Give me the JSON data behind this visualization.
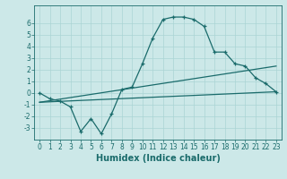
{
  "xlabel": "Humidex (Indice chaleur)",
  "bg_color": "#cce8e8",
  "line_color": "#1a6b6b",
  "grid_color": "#aad4d4",
  "x_ticks": [
    0,
    1,
    2,
    3,
    4,
    5,
    6,
    7,
    8,
    9,
    10,
    11,
    12,
    13,
    14,
    15,
    16,
    17,
    18,
    19,
    20,
    21,
    22,
    23
  ],
  "ylim": [
    -4,
    7.5
  ],
  "xlim": [
    -0.5,
    23.5
  ],
  "series1_x": [
    0,
    1,
    2,
    3,
    4,
    5,
    6,
    7,
    8,
    9,
    10,
    11,
    12,
    13,
    14,
    15,
    16,
    17,
    18,
    19,
    20,
    21,
    22,
    23
  ],
  "series1_y": [
    0.0,
    -0.5,
    -0.7,
    -1.2,
    -3.3,
    -2.2,
    -3.5,
    -1.8,
    0.3,
    0.5,
    2.5,
    4.7,
    6.3,
    6.5,
    6.5,
    6.3,
    5.7,
    3.5,
    3.5,
    2.5,
    2.3,
    1.3,
    0.8,
    0.1
  ],
  "series2_x": [
    0,
    23
  ],
  "series2_y": [
    -0.8,
    0.1
  ],
  "series3_x": [
    0,
    23
  ],
  "series3_y": [
    -0.8,
    2.3
  ],
  "yticks": [
    -3,
    -2,
    -1,
    0,
    1,
    2,
    3,
    4,
    5,
    6
  ],
  "tick_fontsize": 5.5,
  "xlabel_fontsize": 7,
  "linewidth": 0.9,
  "marker_size": 3.5
}
